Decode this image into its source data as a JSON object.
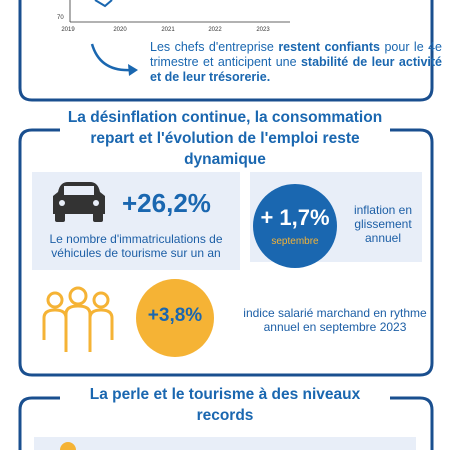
{
  "top_card": {
    "axis": {
      "y_label": "70",
      "x_labels": [
        "2019",
        "2020",
        "2021",
        "2022",
        "2023"
      ]
    },
    "text": [
      "Les chefs d'entreprise ",
      "restent confiants",
      " pour le 4e trimestre et anticipent une ",
      "stabilité de leur activité et de leur trésorerie."
    ]
  },
  "section1": {
    "title": "La désinflation continue, la consommation repart et l'évolution de l'emploi reste dynamique",
    "cars": {
      "value": "+26,2%",
      "caption": "Le nombre d'immatriculations de véhicules de tourisme sur un an"
    },
    "inflation": {
      "value": "+ 1,7%",
      "month": "septembre",
      "caption": "inflation en glissement annuel"
    },
    "salary": {
      "value": "+3,8%",
      "caption": "indice salarié marchand en rythme annuel en septembre 2023"
    }
  },
  "section2": {
    "title": "La perle et le tourisme à des niveaux records"
  }
}
